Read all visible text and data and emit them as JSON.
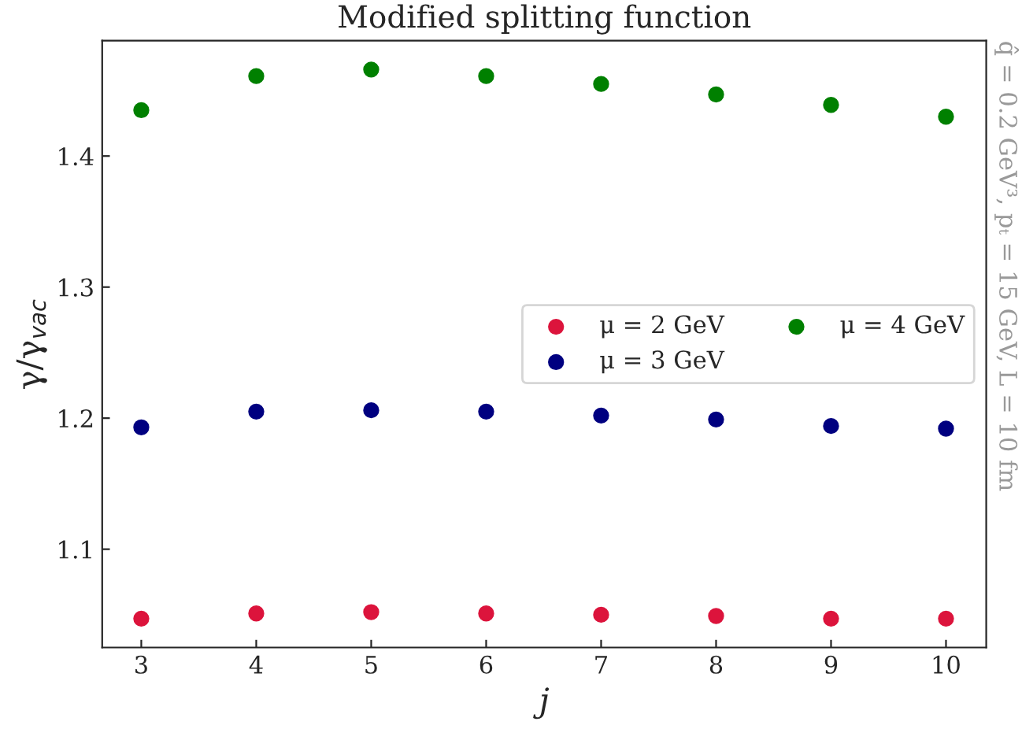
{
  "chart_data": {
    "type": "scatter",
    "title": "Modified splitting function",
    "xlabel": "j",
    "ylabel": "γ/γ$_{vac}$",
    "annotations": [
      "q̂ = 0.2 GeV³, pₜ = 15 GeV, L = 10 fm"
    ],
    "x": [
      3,
      4,
      5,
      6,
      7,
      8,
      9,
      10
    ],
    "series": [
      {
        "name": "μ = 2 GeV",
        "color": "#dc143c",
        "values": [
          1.047,
          1.051,
          1.052,
          1.051,
          1.05,
          1.049,
          1.047,
          1.047
        ]
      },
      {
        "name": "μ = 3 GeV",
        "color": "#000080",
        "values": [
          1.193,
          1.205,
          1.206,
          1.205,
          1.202,
          1.199,
          1.194,
          1.192
        ]
      },
      {
        "name": "μ = 4 GeV",
        "color": "#008000",
        "values": [
          1.435,
          1.461,
          1.466,
          1.461,
          1.455,
          1.447,
          1.439,
          1.43
        ]
      }
    ],
    "xlim": [
      2.66,
      10.35
    ],
    "xticks": [
      3,
      4,
      5,
      6,
      7,
      8,
      9,
      10
    ],
    "ylim": [
      1.025,
      1.488
    ],
    "yticks": [
      1.1,
      1.2,
      1.3,
      1.4
    ],
    "legend": "right",
    "marker": "circle",
    "grid": false
  }
}
